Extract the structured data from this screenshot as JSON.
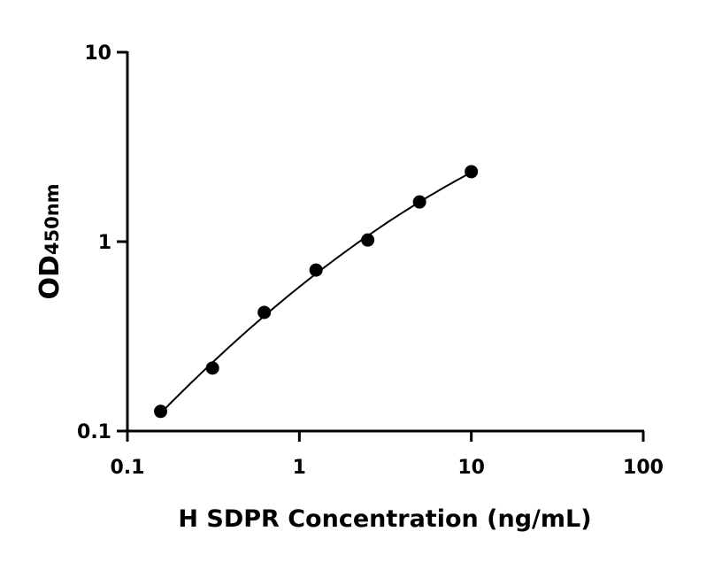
{
  "chart_data": {
    "type": "scatter",
    "title": "",
    "xlabel": "H SDPR Concentration (ng/mL)",
    "ylabel": "OD",
    "ylabel_subscript": "450nm",
    "x_scale": "log",
    "y_scale": "log",
    "xlim": [
      0.1,
      100
    ],
    "ylim": [
      0.1,
      10
    ],
    "x_ticks": [
      "0.1",
      "1",
      "10",
      "100"
    ],
    "y_ticks": [
      "0.1",
      "1",
      "10"
    ],
    "grid": false,
    "legend": "none",
    "fit_line": true,
    "series": [
      {
        "x": [
          0.156,
          0.3125,
          0.625,
          1.25,
          2.5,
          5,
          10
        ],
        "y": [
          0.127,
          0.215,
          0.423,
          0.708,
          1.02,
          1.62,
          2.34
        ]
      }
    ],
    "colors": {
      "points": "#000000",
      "line": "#000000"
    }
  }
}
